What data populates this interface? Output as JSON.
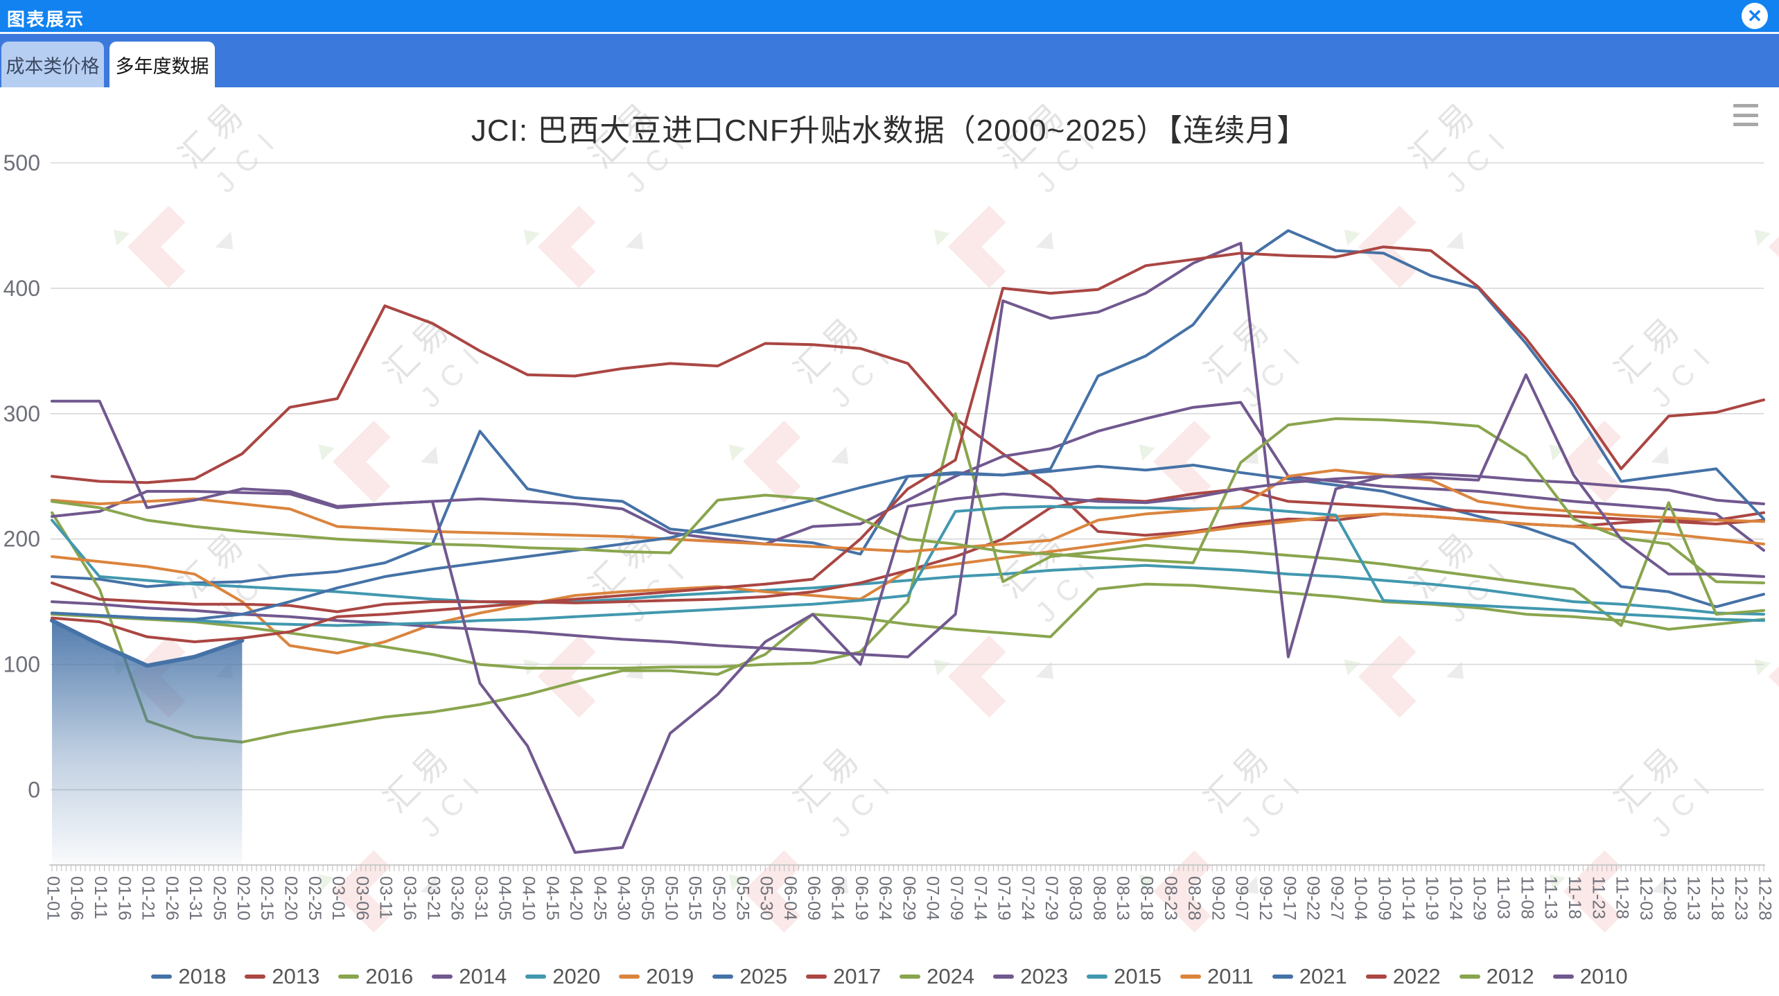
{
  "header": {
    "title": "图表展示"
  },
  "icons": {
    "close": "✕"
  },
  "tabs": [
    {
      "label": "成本类价格",
      "active": false
    },
    {
      "label": "多年度数据",
      "active": true
    }
  ],
  "watermark": {
    "line1": "汇易",
    "line2": "JCI"
  },
  "colors": {
    "header_bg": "#1182EF",
    "tabbar_bg": "#3C79DD",
    "inactive_tab_bg": "#B6CEF2",
    "grid": "#D8D8D8",
    "axis_line": "#CCCCCC",
    "axis_tick": "#BBBBBB",
    "axis_text": "#6E7079",
    "legend_text": "#555555"
  },
  "chart_data": {
    "type": "line",
    "title": "JCI: 巴西大豆进口CNF升贴水数据（2000~2025）【连续月】",
    "xlabel": "",
    "ylabel": "",
    "ylim": [
      -60,
      500
    ],
    "y_ticks": [
      0,
      100,
      200,
      300,
      400,
      500
    ],
    "grid": true,
    "legend_position": "bottom",
    "note": "series values are sampled every other category (10-day steps) starting at 01-01; null = no data (2025 ends mid-February)",
    "sample_step": 2,
    "categories": [
      "01-01",
      "01-06",
      "01-11",
      "01-16",
      "01-21",
      "01-26",
      "01-31",
      "02-05",
      "02-10",
      "02-15",
      "02-20",
      "02-25",
      "03-01",
      "03-06",
      "03-11",
      "03-16",
      "03-21",
      "03-26",
      "03-31",
      "04-05",
      "04-10",
      "04-15",
      "04-20",
      "04-25",
      "04-30",
      "05-05",
      "05-10",
      "05-15",
      "05-20",
      "05-25",
      "05-30",
      "06-04",
      "06-09",
      "06-14",
      "06-19",
      "06-24",
      "06-29",
      "07-04",
      "07-09",
      "07-14",
      "07-19",
      "07-24",
      "07-29",
      "08-03",
      "08-08",
      "08-13",
      "08-18",
      "08-23",
      "08-28",
      "09-02",
      "09-07",
      "09-12",
      "09-17",
      "09-22",
      "09-27",
      "10-04",
      "10-09",
      "10-14",
      "10-19",
      "10-24",
      "10-29",
      "11-03",
      "11-08",
      "11-13",
      "11-18",
      "11-23",
      "11-28",
      "12-03",
      "12-08",
      "12-13",
      "12-18",
      "12-23",
      "12-28"
    ],
    "series": [
      {
        "name": "2018",
        "color": "#4572A7",
        "area": false,
        "values": [
          170,
          168,
          162,
          165,
          166,
          171,
          174,
          181,
          196,
          286,
          240,
          233,
          230,
          208,
          204,
          200,
          197,
          188,
          250,
          253,
          251,
          254,
          258,
          255,
          259,
          253,
          248,
          243,
          238,
          228,
          218,
          209,
          196,
          162,
          158,
          146,
          156
        ]
      },
      {
        "name": "2013",
        "color": "#AA4643",
        "area": false,
        "values": [
          250,
          246,
          245,
          248,
          268,
          305,
          312,
          386,
          372,
          350,
          331,
          330,
          336,
          340,
          338,
          356,
          355,
          352,
          340,
          296,
          268,
          242,
          206,
          203,
          206,
          212,
          216,
          215,
          220,
          218,
          215,
          212,
          210,
          213,
          215,
          215,
          221
        ]
      },
      {
        "name": "2016",
        "color": "#89A54E",
        "area": false,
        "values": [
          221,
          160,
          55,
          42,
          38,
          46,
          52,
          58,
          62,
          68,
          76,
          86,
          95,
          95,
          92,
          108,
          140,
          137,
          132,
          128,
          125,
          122,
          160,
          164,
          163,
          160,
          157,
          154,
          150,
          148,
          145,
          140,
          138,
          135,
          128,
          132,
          136
        ]
      },
      {
        "name": "2014",
        "color": "#71588F",
        "area": false,
        "values": [
          218,
          222,
          238,
          238,
          237,
          236,
          225,
          228,
          230,
          232,
          230,
          228,
          224,
          205,
          200,
          196,
          210,
          212,
          231,
          250,
          266,
          272,
          286,
          296,
          305,
          309,
          250,
          246,
          242,
          240,
          238,
          234,
          230,
          227,
          224,
          220,
          191
        ]
      },
      {
        "name": "2020",
        "color": "#4198AF",
        "area": false,
        "values": [
          215,
          170,
          167,
          164,
          162,
          160,
          158,
          155,
          152,
          150,
          149,
          150,
          152,
          155,
          157,
          159,
          161,
          164,
          167,
          170,
          172,
          175,
          177,
          179,
          177,
          175,
          172,
          170,
          167,
          164,
          160,
          155,
          150,
          148,
          145,
          141,
          140
        ]
      },
      {
        "name": "2019",
        "color": "#DB843D",
        "area": false,
        "values": [
          186,
          182,
          178,
          172,
          150,
          115,
          109,
          118,
          132,
          141,
          148,
          155,
          158,
          160,
          162,
          158,
          155,
          152,
          175,
          180,
          185,
          190,
          195,
          200,
          205,
          210,
          214,
          218,
          220,
          218,
          215,
          212,
          210,
          207,
          204,
          200,
          196
        ]
      },
      {
        "name": "2025",
        "color": "#4572A7",
        "area": true,
        "values": [
          135,
          116,
          99,
          106,
          119,
          null,
          null,
          null,
          null,
          null,
          null,
          null,
          null,
          null,
          null,
          null,
          null,
          null,
          null,
          null,
          null,
          null,
          null,
          null,
          null,
          null,
          null,
          null,
          null,
          null,
          null,
          null,
          null,
          null,
          null,
          null,
          null
        ]
      },
      {
        "name": "2017",
        "color": "#AA4643",
        "area": false,
        "values": [
          165,
          152,
          150,
          148,
          148,
          147,
          142,
          148,
          150,
          150,
          150,
          149,
          150,
          151,
          152,
          154,
          158,
          165,
          175,
          186,
          200,
          225,
          232,
          230,
          236,
          240,
          230,
          228,
          226,
          224,
          222,
          220,
          218,
          216,
          214,
          212,
          215
        ]
      },
      {
        "name": "2024",
        "color": "#89A54E",
        "area": false,
        "values": [
          140,
          138,
          136,
          134,
          130,
          125,
          120,
          114,
          108,
          100,
          97,
          97,
          97,
          98,
          98,
          100,
          101,
          110,
          150,
          300,
          166,
          186,
          190,
          195,
          192,
          190,
          187,
          184,
          180,
          175,
          170,
          165,
          160,
          131,
          229,
          140,
          143
        ]
      },
      {
        "name": "2023",
        "color": "#71588F",
        "area": false,
        "values": [
          150,
          148,
          145,
          143,
          140,
          138,
          135,
          133,
          130,
          128,
          126,
          123,
          120,
          118,
          115,
          113,
          111,
          108,
          106,
          140,
          390,
          376,
          381,
          396,
          420,
          436,
          106,
          240,
          250,
          252,
          250,
          247,
          245,
          242,
          239,
          231,
          228
        ]
      },
      {
        "name": "2015",
        "color": "#4198AF",
        "area": false,
        "values": [
          141,
          139,
          137,
          135,
          133,
          132,
          131,
          132,
          133,
          135,
          136,
          138,
          140,
          142,
          144,
          146,
          148,
          151,
          155,
          222,
          225,
          226,
          225,
          225,
          224,
          225,
          222,
          219,
          151,
          149,
          147,
          145,
          143,
          140,
          138,
          136,
          135
        ]
      },
      {
        "name": "2011",
        "color": "#DB843D",
        "area": false,
        "values": [
          231,
          228,
          230,
          232,
          228,
          224,
          210,
          208,
          206,
          205,
          204,
          203,
          202,
          200,
          198,
          196,
          194,
          192,
          190,
          193,
          196,
          199,
          215,
          220,
          223,
          226,
          250,
          255,
          251,
          247,
          230,
          225,
          222,
          219,
          217,
          215,
          214
        ]
      },
      {
        "name": "2021",
        "color": "#4572A7",
        "area": false,
        "values": [
          141,
          139,
          137,
          136,
          140,
          150,
          161,
          170,
          176,
          181,
          186,
          191,
          196,
          201,
          211,
          221,
          231,
          241,
          250,
          252,
          251,
          256,
          330,
          346,
          371,
          420,
          446,
          430,
          428,
          410,
          400,
          356,
          306,
          246,
          251,
          256,
          216
        ]
      },
      {
        "name": "2022",
        "color": "#AA4643",
        "area": false,
        "values": [
          137,
          134,
          122,
          118,
          121,
          126,
          138,
          140,
          143,
          146,
          149,
          152,
          155,
          158,
          161,
          164,
          168,
          200,
          240,
          263,
          400,
          396,
          399,
          418,
          423,
          428,
          426,
          425,
          433,
          430,
          401,
          360,
          311,
          256,
          298,
          301,
          311
        ]
      },
      {
        "name": "2012",
        "color": "#89A54E",
        "area": false,
        "values": [
          230,
          225,
          215,
          210,
          206,
          203,
          200,
          198,
          196,
          195,
          193,
          192,
          190,
          189,
          231,
          235,
          232,
          216,
          200,
          196,
          190,
          188,
          185,
          183,
          181,
          261,
          291,
          296,
          295,
          293,
          290,
          266,
          216,
          201,
          196,
          166,
          165
        ]
      },
      {
        "name": "2010",
        "color": "#71588F",
        "area": false,
        "values": [
          310,
          310,
          225,
          231,
          240,
          238,
          226,
          228,
          230,
          85,
          35,
          -50,
          -46,
          45,
          76,
          118,
          140,
          100,
          226,
          232,
          236,
          233,
          230,
          229,
          233,
          240,
          245,
          248,
          250,
          249,
          247,
          331,
          251,
          200,
          172,
          172,
          170
        ]
      }
    ]
  }
}
